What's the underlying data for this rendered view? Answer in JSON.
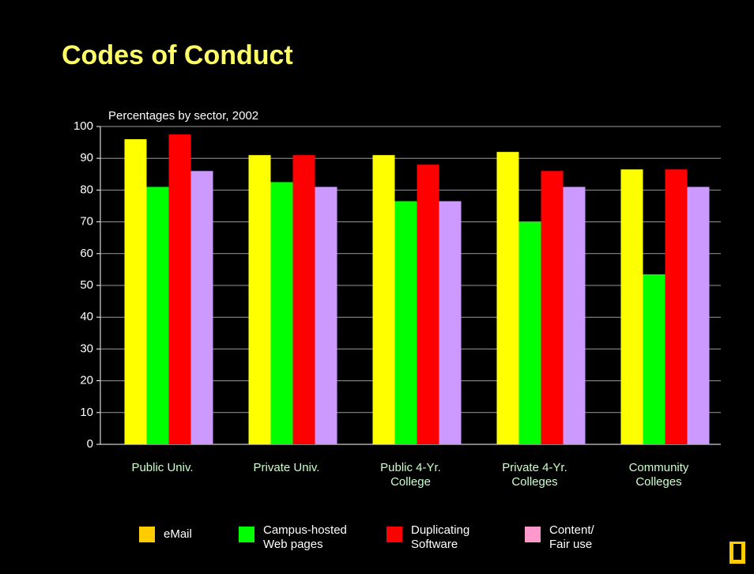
{
  "chart_data": {
    "type": "bar",
    "title": "Codes of Conduct",
    "subtitle": "Percentages by sector, 2002",
    "categories": [
      "Public Univ.",
      "Private Univ.",
      "Public 4-Yr.\nCollege",
      "Private 4-Yr.\nColleges",
      "Community\nColleges"
    ],
    "series": [
      {
        "name": "eMail",
        "color": "#ffff00",
        "legend_color": "#ffcc00",
        "values": [
          96,
          91,
          91,
          92,
          86.5
        ]
      },
      {
        "name": "Campus-hosted\nWeb pages",
        "color": "#00ff00",
        "legend_color": "#00ff00",
        "values": [
          81,
          82.5,
          76.5,
          70,
          53.5
        ]
      },
      {
        "name": "Duplicating\nSoftware",
        "color": "#ff0000",
        "legend_color": "#ff0000",
        "values": [
          97.5,
          91,
          88,
          86,
          86.5
        ]
      },
      {
        "name": "Content/\nFair use",
        "color": "#cc99ff",
        "legend_color": "#ff99cc",
        "values": [
          86,
          81,
          76.5,
          81,
          81
        ]
      }
    ],
    "ylim": [
      0,
      100
    ],
    "yticks": [
      0,
      10,
      20,
      30,
      40,
      50,
      60,
      70,
      80,
      90,
      100
    ],
    "grid": true
  }
}
